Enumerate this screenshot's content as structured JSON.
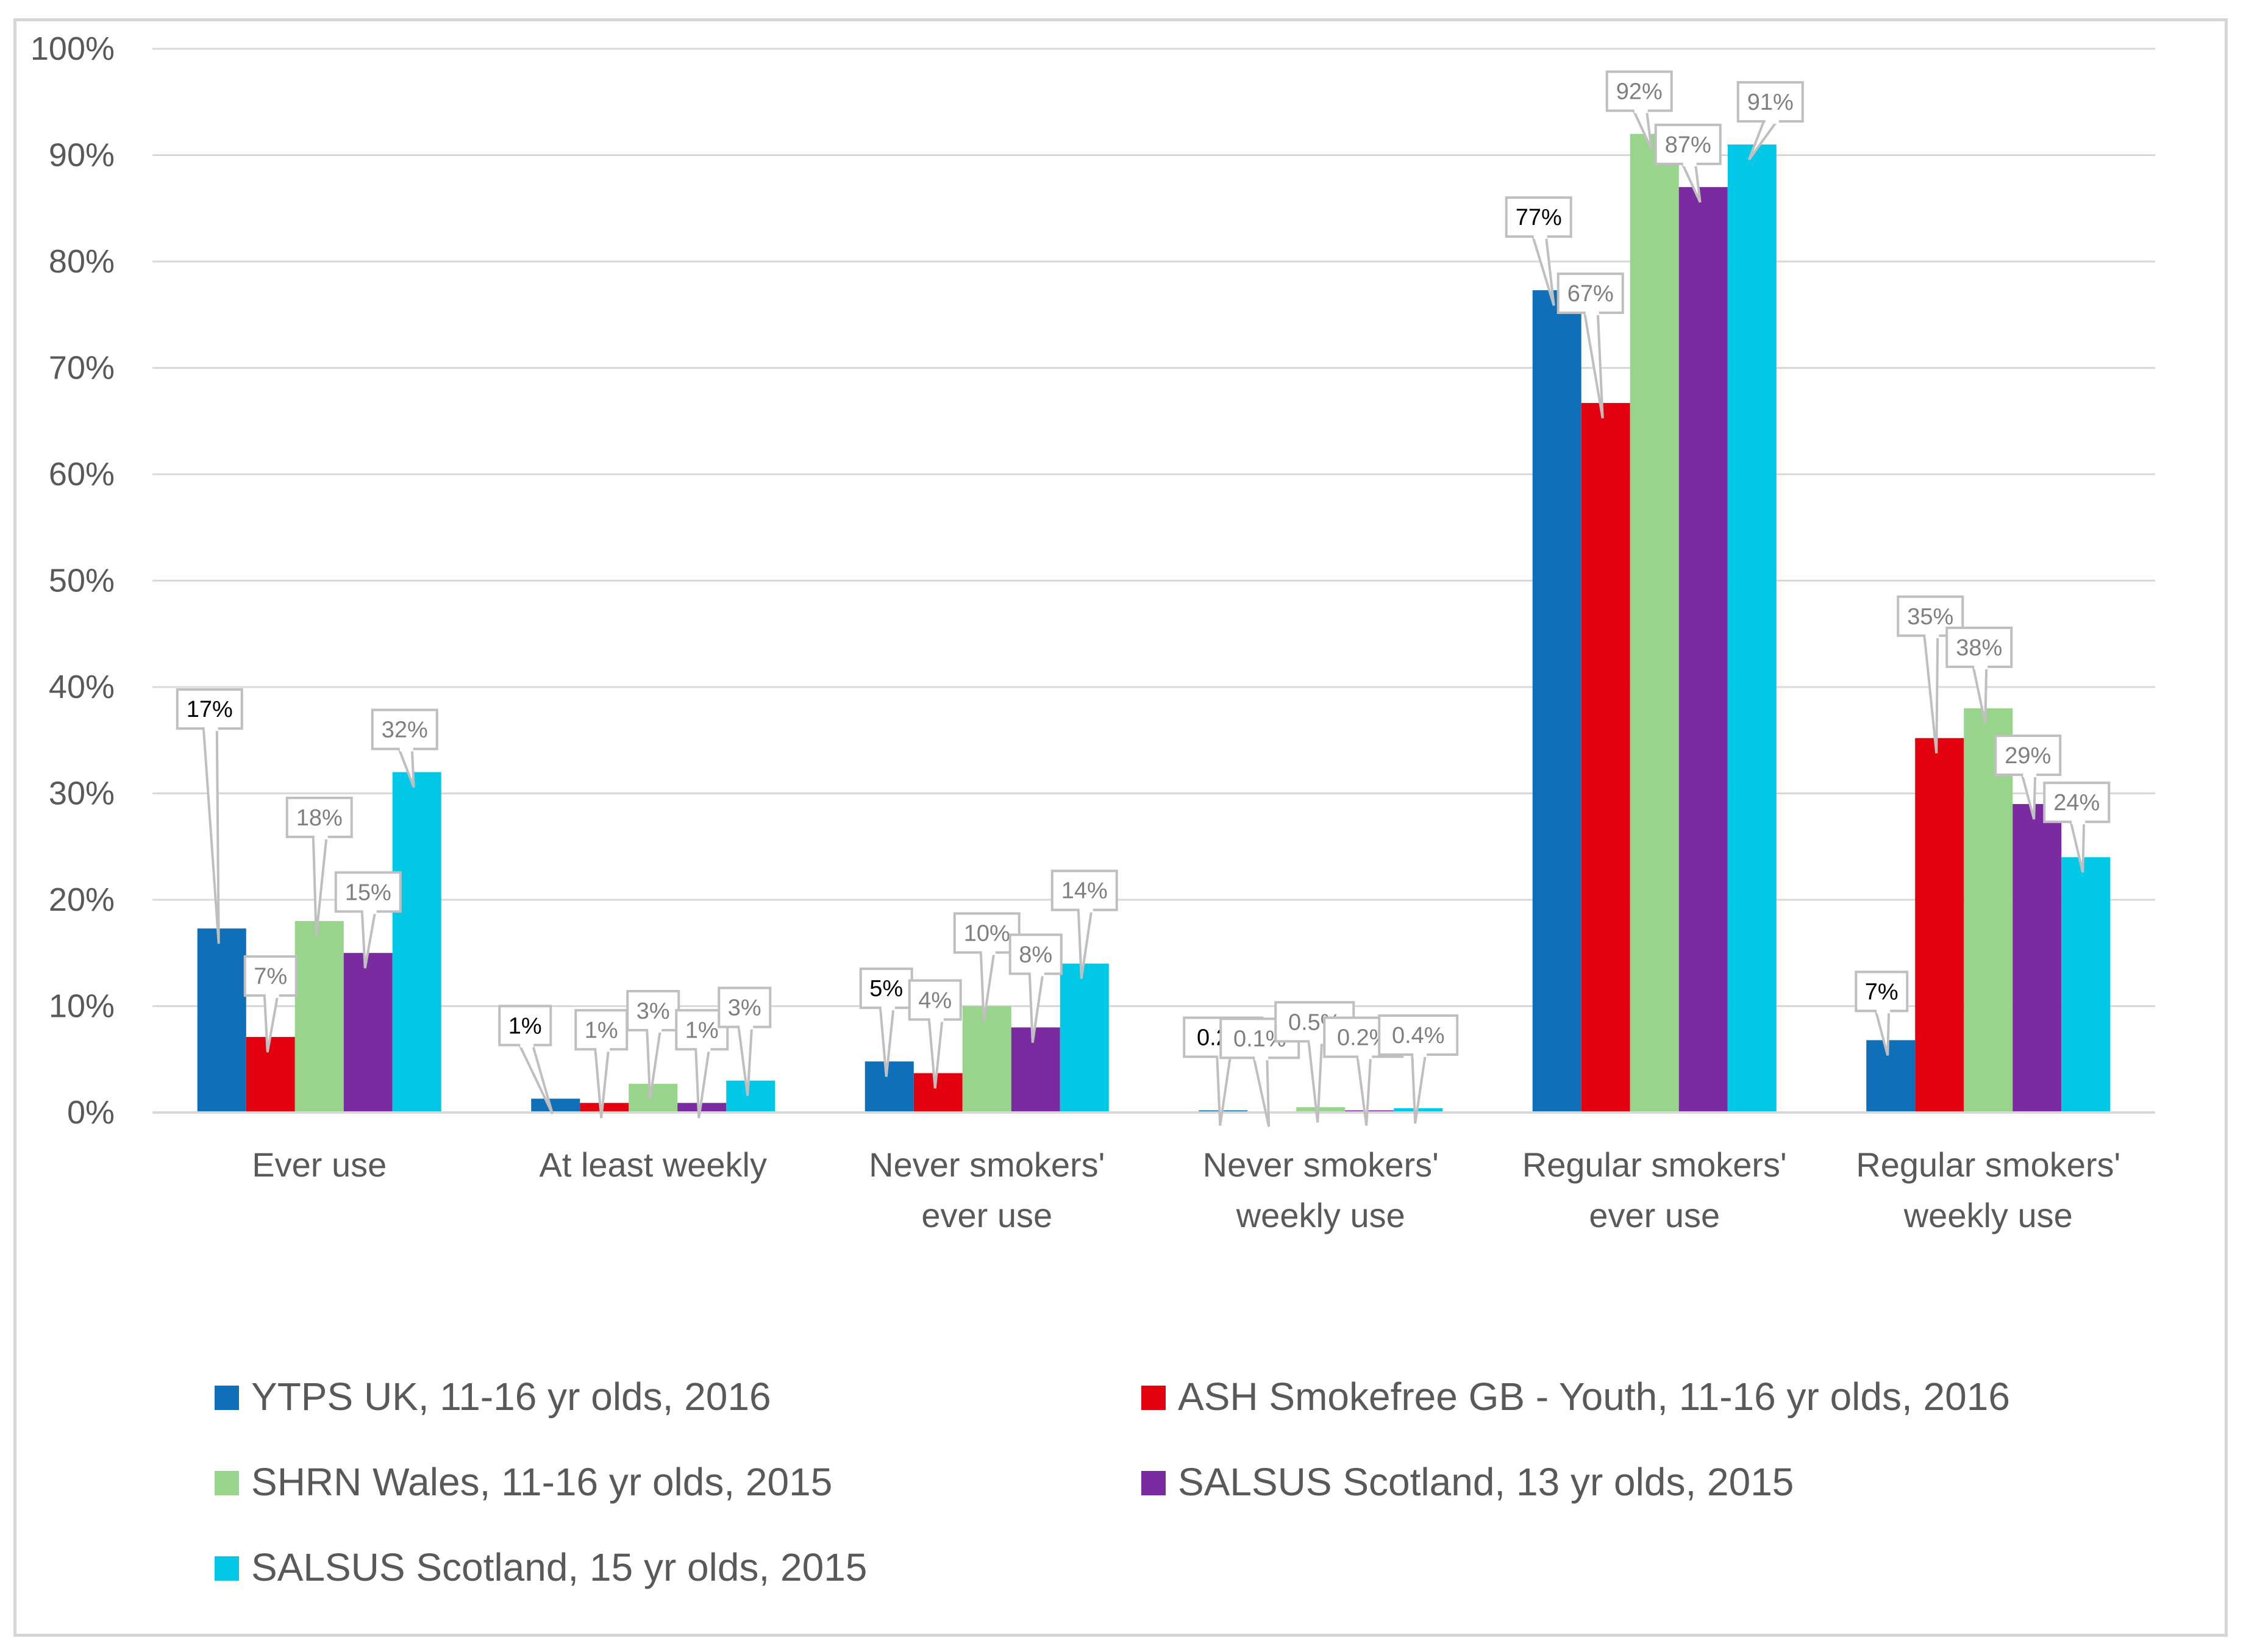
{
  "chart_data": {
    "type": "bar",
    "title": "",
    "xlabel": "",
    "ylabel": "",
    "ylim": [
      0,
      100
    ],
    "y_ticks": [
      "0%",
      "10%",
      "20%",
      "30%",
      "40%",
      "50%",
      "60%",
      "70%",
      "80%",
      "90%",
      "100%"
    ],
    "categories": [
      [
        "Ever use"
      ],
      [
        "At least weekly"
      ],
      [
        "Never smokers'",
        "ever use"
      ],
      [
        "Never smokers'",
        "weekly use"
      ],
      [
        "Regular smokers'",
        "ever use"
      ],
      [
        "Regular smokers'",
        "weekly use"
      ]
    ],
    "series": [
      {
        "name": "YTPS UK, 11-16 yr olds, 2016",
        "color": "#0f6fb8",
        "values": [
          17.3,
          1.3,
          4.8,
          0.2,
          77.3,
          6.8
        ],
        "labels": [
          "17%",
          "1%",
          "5%",
          "0.2%",
          "77%",
          "7%"
        ]
      },
      {
        "name": "ASH Smokefree GB - Youth, 11-16 yr olds, 2016",
        "color": "#e3000f",
        "values": [
          7.1,
          0.9,
          3.7,
          0.1,
          66.7,
          35.2
        ],
        "labels": [
          "7%",
          "1%",
          "4%",
          "0.1%",
          "67%",
          "35%"
        ]
      },
      {
        "name": "SHRN Wales, 11-16 yr olds, 2015",
        "color": "#98d48c",
        "values": [
          18.0,
          2.7,
          10.0,
          0.5,
          92.0,
          38.0
        ],
        "labels": [
          "18%",
          "3%",
          "10%",
          "0.5%",
          "92%",
          "38%"
        ]
      },
      {
        "name": "SALSUS Scotland, 13 yr olds, 2015",
        "color": "#7a2ba0",
        "values": [
          15.0,
          0.9,
          8.0,
          0.2,
          87.0,
          29.0
        ],
        "labels": [
          "15%",
          "1%",
          "8%",
          "0.2%",
          "87%",
          "29%"
        ]
      },
      {
        "name": "SALSUS Scotland, 15 yr olds, 2015",
        "color": "#00c8e6",
        "values": [
          32.0,
          3.0,
          14.0,
          0.4,
          91.0,
          24.0
        ],
        "labels": [
          "32%",
          "3%",
          "14%",
          "0.4%",
          "91%",
          "24%"
        ]
      }
    ],
    "legend_position": "bottom",
    "grid": true
  }
}
